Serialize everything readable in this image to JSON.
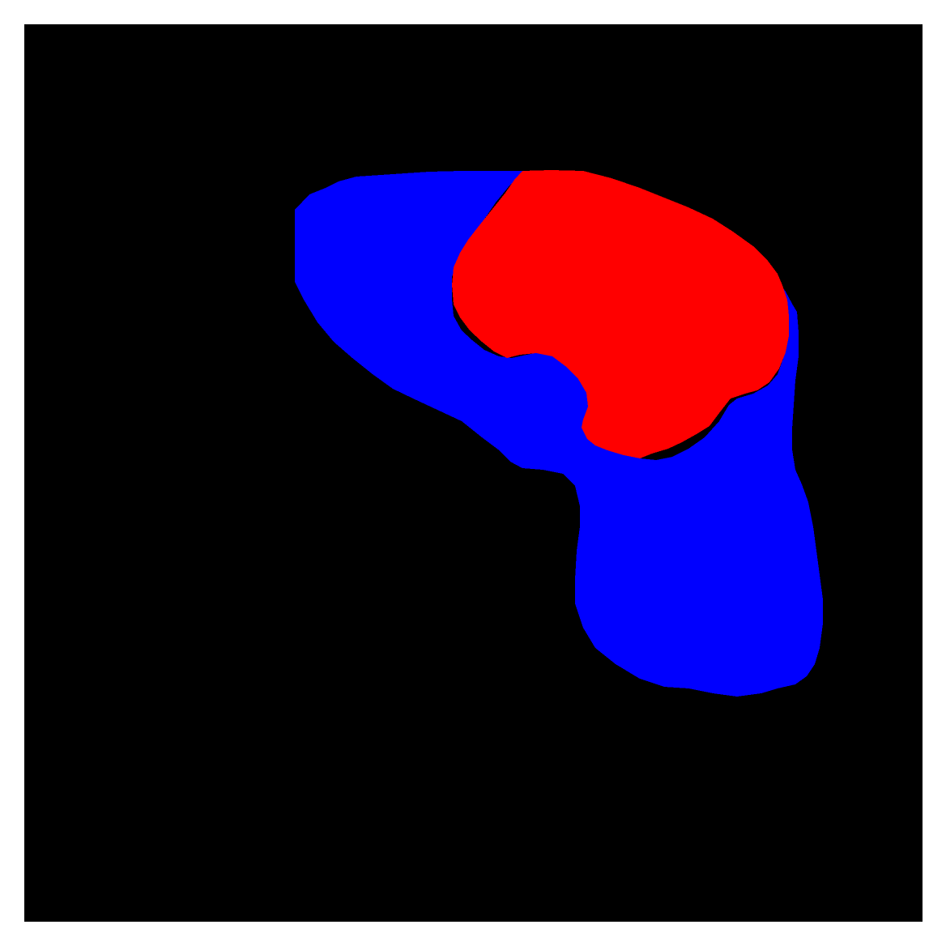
{
  "image": {
    "kind": "segmentation-mask",
    "background_color": "#000000",
    "border_color": "#ffffff"
  },
  "regions": [
    {
      "label_color": "#0000ff",
      "icon": "blue-region"
    },
    {
      "label_color": "#ff0000",
      "icon": "red-region"
    }
  ]
}
